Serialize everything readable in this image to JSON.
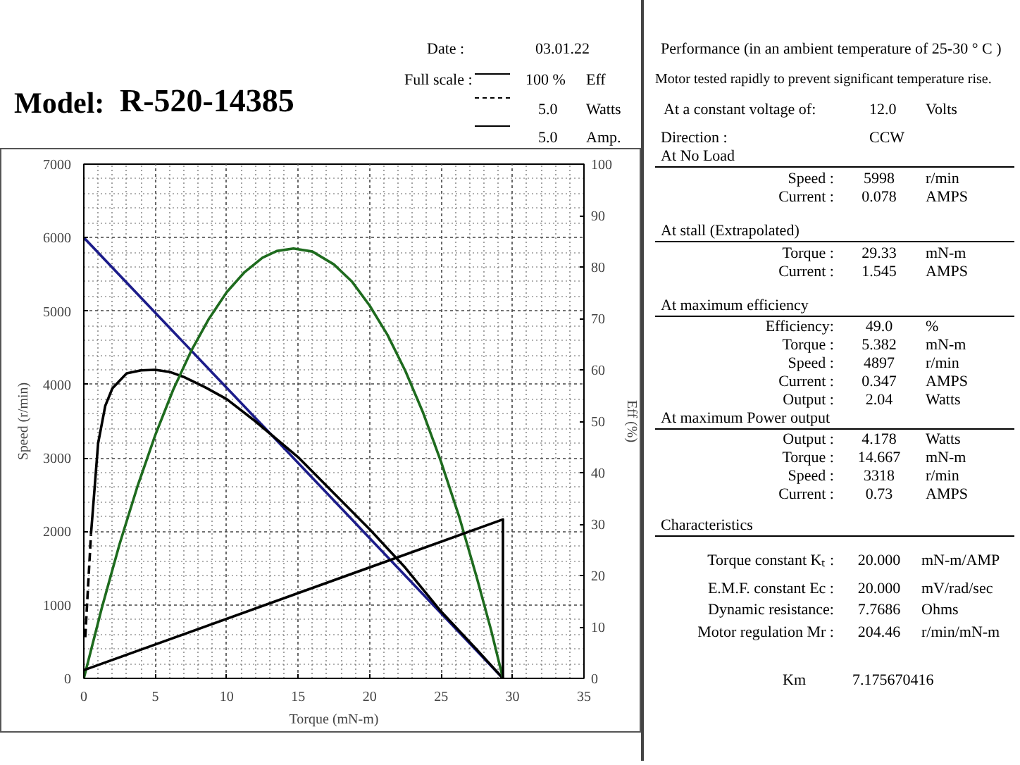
{
  "chart_data": {
    "type": "line",
    "title": "Model:",
    "subtitle": "R-520-14385",
    "xlabel": "Torque (mN-m)",
    "ylabel": "Speed (r/min)",
    "y2label": "Eff (%)",
    "xlim": [
      0,
      35
    ],
    "xticks": [
      0,
      5,
      10,
      15,
      20,
      25,
      30,
      35
    ],
    "ylim": [
      0,
      7000
    ],
    "yticks": [
      0,
      1000,
      2000,
      3000,
      4000,
      5000,
      6000,
      7000
    ],
    "y2lim": [
      0,
      100
    ],
    "y2ticks": [
      0,
      10,
      20,
      30,
      40,
      50,
      60,
      70,
      80,
      90,
      100
    ],
    "grid": true,
    "series": [
      {
        "color": "#1c1c8a",
        "x": [
          0,
          29.33
        ],
        "values": [
          6000,
          0
        ]
      },
      {
        "color": "#000000",
        "axis": "y2",
        "line_style": "dashed",
        "x": [
          0.1,
          0.3,
          0.5
        ],
        "values": [
          8,
          18,
          28
        ]
      },
      {
        "color": "#000000",
        "axis": "y2",
        "x": [
          0.5,
          1,
          1.5,
          2,
          3,
          4,
          5,
          6,
          7,
          8.5,
          10,
          12,
          15,
          17.5,
          20,
          22.5,
          25,
          27.5,
          29.33
        ],
        "values": [
          28,
          45.7,
          53,
          56.4,
          59.3,
          59.9,
          60,
          59.6,
          58.6,
          56.6,
          54.3,
          50,
          43,
          36,
          29,
          21.5,
          13,
          5.6,
          0
        ]
      },
      {
        "color": "#1e6b1e",
        "axis": "y2",
        "x": [
          0,
          1.25,
          2.5,
          3.75,
          5,
          6.25,
          7.5,
          8.75,
          10,
          11.25,
          12.5,
          13.5,
          14.67,
          16,
          17.5,
          18.75,
          20,
          21.25,
          22.5,
          23.75,
          25,
          26.25,
          27.5,
          28.5,
          29.33
        ],
        "values": [
          0,
          13.6,
          26.1,
          37.3,
          47.3,
          56.1,
          63.6,
          69.9,
          75.1,
          79.0,
          81.8,
          83.1,
          83.6,
          83.0,
          80.5,
          77.2,
          72.5,
          66.8,
          59.8,
          51.6,
          42.1,
          31.6,
          19.6,
          9.4,
          0
        ]
      },
      {
        "color": "#000000",
        "axis": "y2",
        "x": [
          0,
          29.33,
          29.33
        ],
        "values": [
          1.6,
          30.9,
          0
        ]
      }
    ],
    "annotations": [
      "Date :",
      "03.01.22",
      "Full scale :",
      "100 %",
      "Eff",
      "5.0",
      "Watts",
      "5.0",
      "Amp.",
      "Performance (in an ambient temperature of 25-30 ° C )",
      "Motor tested rapidly to prevent significant temperature rise.",
      "At a constant voltage of:",
      "12.0",
      "Volts",
      "Direction :",
      "CCW",
      "At No Load",
      "Speed :",
      "5998",
      "r/min",
      "Current :",
      "0.078",
      "AMPS",
      "At stall (Extrapolated)",
      "Torque :",
      "29.33",
      "mN-m",
      "Current :",
      "1.545",
      "AMPS",
      "At maximum efficiency",
      "Efficiency:",
      "49.0",
      "%",
      "Torque :",
      "5.382",
      "mN-m",
      "Speed :",
      "4897",
      "r/min",
      "Current :",
      "0.347",
      "AMPS",
      "Output :",
      "2.04",
      "Watts",
      "At maximum Power output",
      "Output :",
      "4.178",
      "Watts",
      "Torque :",
      "14.667",
      "mN-m",
      "Speed :",
      "3318",
      "r/min",
      "Current :",
      "0.73",
      "AMPS",
      "Characteristics",
      "Torque constant Kₜ :",
      "20.000",
      "mN-m/AMP",
      "E.M.F. constant Ec :",
      "20.000",
      "mV/rad/sec",
      "Dynamic resistance:",
      "7.7686",
      "Ohms",
      "Motor regulation Mr :",
      "204.46",
      "r/min/mN-m",
      "Km",
      "7.175670416"
    ]
  }
}
